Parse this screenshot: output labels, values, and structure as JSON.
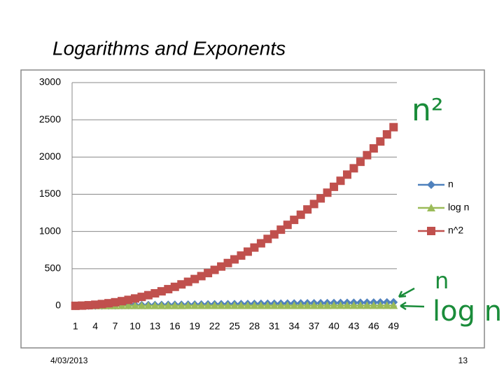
{
  "chart_data": {
    "type": "line",
    "title": "Logarithms and Exponents",
    "categories": [
      1,
      null,
      null,
      4,
      null,
      null,
      7,
      null,
      null,
      10,
      null,
      null,
      13,
      null,
      null,
      16,
      null,
      null,
      19,
      null,
      null,
      22,
      null,
      null,
      25,
      null,
      null,
      28,
      null,
      null,
      31,
      null,
      null,
      34,
      null,
      null,
      37,
      null,
      null,
      40,
      null,
      null,
      43,
      null,
      null,
      46,
      null,
      null,
      49
    ],
    "series": [
      {
        "name": "n",
        "color": "#4f81bd",
        "marker": "diamond",
        "values": [
          1,
          2,
          3,
          4,
          5,
          6,
          7,
          8,
          9,
          10,
          11,
          12,
          13,
          14,
          15,
          16,
          17,
          18,
          19,
          20,
          21,
          22,
          23,
          24,
          25,
          26,
          27,
          28,
          29,
          30,
          31,
          32,
          33,
          34,
          35,
          36,
          37,
          38,
          39,
          40,
          41,
          42,
          43,
          44,
          45,
          46,
          47,
          48,
          49
        ]
      },
      {
        "name": "log n",
        "color": "#9bbb59",
        "marker": "triangle",
        "values": [
          0,
          1,
          1.58,
          2,
          2.32,
          2.58,
          2.81,
          3,
          3.17,
          3.32,
          3.46,
          3.58,
          3.7,
          3.81,
          3.91,
          4,
          4.09,
          4.17,
          4.25,
          4.32,
          4.39,
          4.46,
          4.52,
          4.58,
          4.64,
          4.7,
          4.75,
          4.81,
          4.86,
          4.91,
          4.95,
          5,
          5.04,
          5.09,
          5.13,
          5.17,
          5.21,
          5.25,
          5.29,
          5.32,
          5.36,
          5.39,
          5.43,
          5.46,
          5.49,
          5.52,
          5.55,
          5.58,
          5.61
        ]
      },
      {
        "name": "n^2",
        "color": "#c0504d",
        "marker": "square",
        "values": [
          1,
          4,
          9,
          16,
          25,
          36,
          49,
          64,
          81,
          100,
          121,
          144,
          169,
          196,
          225,
          256,
          289,
          324,
          361,
          400,
          441,
          484,
          529,
          576,
          625,
          676,
          729,
          784,
          841,
          900,
          961,
          1024,
          1089,
          1156,
          1225,
          1296,
          1369,
          1444,
          1521,
          1600,
          1681,
          1764,
          1849,
          1936,
          2025,
          2116,
          2209,
          2304,
          2401
        ]
      }
    ],
    "ylim": [
      0,
      3000
    ],
    "yticks": [
      0,
      500,
      1000,
      1500,
      2000,
      2500,
      3000
    ],
    "grid": true,
    "legend": "right",
    "annotations": [
      "n²",
      "n",
      "log n"
    ],
    "footer": {
      "date": "4/03/2013",
      "page": "13"
    }
  }
}
